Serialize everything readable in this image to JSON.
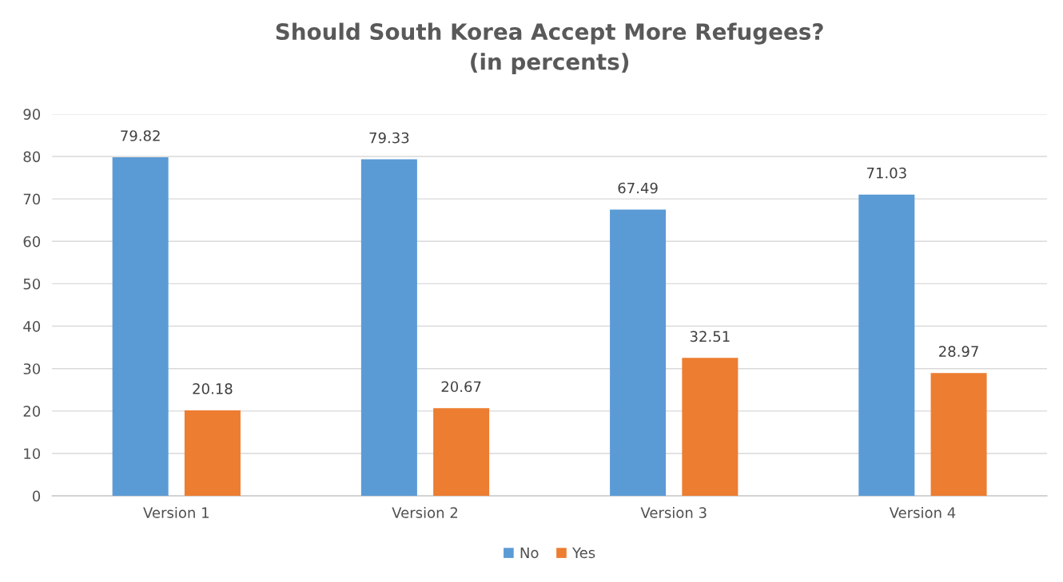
{
  "chart_data": {
    "type": "bar",
    "title": "Should South Korea Accept More Refugees?\n(in percents)",
    "categories": [
      "Version 1",
      "Version 2",
      "Version 3",
      "Version 4"
    ],
    "series": [
      {
        "name": "No",
        "color": "#5b9bd5",
        "values": [
          79.82,
          79.33,
          67.49,
          71.03
        ]
      },
      {
        "name": "Yes",
        "color": "#ed7d31",
        "values": [
          20.18,
          20.67,
          32.51,
          28.97
        ]
      }
    ],
    "ylim": [
      0,
      90
    ],
    "yticks": [
      0,
      10,
      20,
      30,
      40,
      50,
      60,
      70,
      80,
      90
    ],
    "grid": "y",
    "legend": "bottom",
    "data_labels": true
  }
}
